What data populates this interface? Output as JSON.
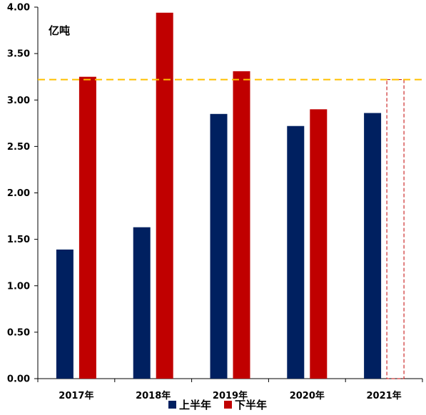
{
  "chart_data": {
    "type": "bar",
    "unit_label": "亿吨",
    "categories": [
      "2017年",
      "2018年",
      "2019年",
      "2020年",
      "2021年"
    ],
    "series": [
      {
        "name": "上半年",
        "color": "#002060",
        "values": [
          1.39,
          1.63,
          2.85,
          2.72,
          2.86
        ]
      },
      {
        "name": "下半年",
        "color": "#C00000",
        "values": [
          3.25,
          3.94,
          3.31,
          2.9,
          3.22
        ]
      }
    ],
    "projected": [
      false,
      false,
      false,
      false,
      true
    ],
    "y_ticks": [
      "0.00",
      "0.50",
      "1.00",
      "1.50",
      "2.00",
      "2.50",
      "3.00",
      "3.50",
      "4.00"
    ],
    "ylim": [
      0,
      4.0
    ],
    "reference_line": {
      "value": 3.22,
      "color": "#FFC000",
      "style": "dashed"
    },
    "projected_outline_color": "#C00000",
    "legend_position": "bottom",
    "grid": false
  }
}
